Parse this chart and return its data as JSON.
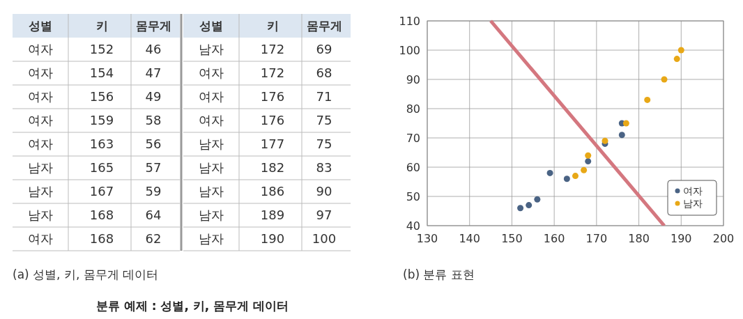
{
  "chart_data": [
    {
      "type": "other",
      "title": "(a) 성별, 키, 몸무게 데이터",
      "categories": [
        "성별",
        "키",
        "몸무게"
      ],
      "cell_labels": [
        [
          "여자",
          "152",
          "46"
        ],
        [
          "여자",
          "154",
          "47"
        ],
        [
          "여자",
          "156",
          "49"
        ],
        [
          "여자",
          "159",
          "58"
        ],
        [
          "여자",
          "163",
          "56"
        ],
        [
          "남자",
          "165",
          "57"
        ],
        [
          "남자",
          "167",
          "59"
        ],
        [
          "남자",
          "168",
          "64"
        ],
        [
          "여자",
          "168",
          "62"
        ],
        [
          "남자",
          "172",
          "69"
        ],
        [
          "여자",
          "172",
          "68"
        ],
        [
          "여자",
          "176",
          "71"
        ],
        [
          "여자",
          "176",
          "75"
        ],
        [
          "남자",
          "177",
          "75"
        ],
        [
          "남자",
          "182",
          "83"
        ],
        [
          "남자",
          "186",
          "90"
        ],
        [
          "남자",
          "189",
          "97"
        ],
        [
          "남자",
          "190",
          "100"
        ]
      ]
    },
    {
      "type": "scatter",
      "title": "(b) 분류 표현",
      "annotations": [
        "분류 예제 : 성별, 키, 몸무게 데이터"
      ],
      "x": [
        152,
        154,
        156,
        159,
        163,
        165,
        167,
        168,
        168,
        172,
        172,
        176,
        176,
        177,
        182,
        186,
        189,
        190
      ],
      "series": [
        {
          "name": "여자",
          "color": "#4a6384",
          "values": [
            46,
            47,
            49,
            58,
            56,
            null,
            null,
            null,
            62,
            null,
            68,
            71,
            75,
            null,
            null,
            null,
            null,
            null
          ]
        },
        {
          "name": "남자",
          "color": "#e8a817",
          "values": [
            null,
            null,
            null,
            null,
            null,
            57,
            59,
            64,
            null,
            69,
            null,
            null,
            null,
            75,
            83,
            90,
            97,
            100
          ]
        },
        {
          "type": "line",
          "color": "#d4777f",
          "marker": "none",
          "x": [
            145,
            186
          ],
          "values": [
            110,
            40
          ]
        }
      ],
      "xlim": [
        130,
        200
      ],
      "xticks": [
        130,
        140,
        150,
        160,
        170,
        180,
        190,
        200
      ],
      "ylim": [
        40,
        110
      ],
      "yticks": [
        40,
        50,
        60,
        70,
        80,
        90,
        100,
        110
      ],
      "grid": true,
      "legend": "bottom right",
      "marker": "circle"
    }
  ]
}
